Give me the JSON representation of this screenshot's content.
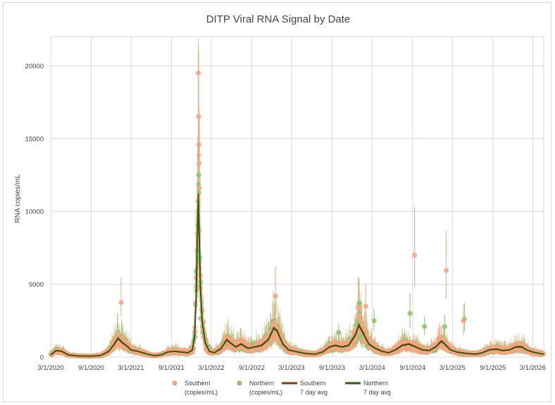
{
  "chart_data": {
    "type": "scatter",
    "title": "DITP Viral RNA Signal by Date",
    "xlabel": "",
    "ylabel": "RNA copies/mL",
    "ylim": [
      0,
      22000
    ],
    "xlim": [
      "2020-03-01",
      "2026-04-20"
    ],
    "grid": true,
    "legend_position": "bottom",
    "y_ticks": [
      0,
      5000,
      10000,
      15000,
      20000
    ],
    "y_tick_labels": [
      "0",
      "5000",
      "10000",
      "15000",
      "20000"
    ],
    "x_ticks": [
      "2020-03-01",
      "2020-09-01",
      "2021-03-01",
      "2021-09-01",
      "2022-03-01",
      "2022-09-01",
      "2023-03-01",
      "2023-09-01",
      "2024-03-01",
      "2024-09-01",
      "2025-03-01",
      "2025-09-01",
      "2026-03-01"
    ],
    "x_tick_labels": [
      "3/1/2020",
      "9/1/2020",
      "3/1/2021",
      "9/1/2021",
      "3/1/2022",
      "9/1/2022",
      "3/1/2023",
      "9/1/2023",
      "3/1/2024",
      "9/1/2024",
      "3/1/2025",
      "9/1/2025",
      "3/1/2026"
    ],
    "colors": {
      "southern_points": "#f4a582",
      "northern_points": "#8fc16d",
      "southern_avg": "#8b3a0e",
      "northern_avg": "#2e5a12",
      "grid": "#d9d9d9"
    },
    "legend": [
      {
        "line1": "Southern",
        "line2": "(copies/mL)",
        "marker": "circle",
        "color": "#f4a582"
      },
      {
        "line1": "Northern",
        "line2": "(copies/mL)",
        "marker": "circle",
        "color": "#8fc16d"
      },
      {
        "line1": "Southern",
        "line2": "7 day avg",
        "marker": "line",
        "color": "#8b3a0e"
      },
      {
        "line1": "Northern",
        "line2": "7 day avg",
        "marker": "line",
        "color": "#2e5a12"
      }
    ],
    "trend_points": [
      [
        "2020-03-01",
        150
      ],
      [
        "2020-03-25",
        450
      ],
      [
        "2020-04-20",
        400
      ],
      [
        "2020-05-20",
        150
      ],
      [
        "2020-07-01",
        80
      ],
      [
        "2020-09-01",
        60
      ],
      [
        "2020-10-15",
        120
      ],
      [
        "2020-11-20",
        400
      ],
      [
        "2020-12-15",
        900
      ],
      [
        "2021-01-01",
        1300
      ],
      [
        "2021-01-20",
        1000
      ],
      [
        "2021-02-15",
        700
      ],
      [
        "2021-03-01",
        500
      ],
      [
        "2021-04-01",
        400
      ],
      [
        "2021-05-15",
        200
      ],
      [
        "2021-06-15",
        100
      ],
      [
        "2021-07-15",
        150
      ],
      [
        "2021-08-15",
        350
      ],
      [
        "2021-09-15",
        400
      ],
      [
        "2021-10-15",
        350
      ],
      [
        "2021-11-15",
        300
      ],
      [
        "2021-12-05",
        500
      ],
      [
        "2021-12-15",
        1500
      ],
      [
        "2021-12-22",
        4000
      ],
      [
        "2021-12-27",
        8000
      ],
      [
        "2022-01-01",
        11000
      ],
      [
        "2022-01-05",
        8500
      ],
      [
        "2022-01-10",
        5000
      ],
      [
        "2022-01-18",
        2500
      ],
      [
        "2022-02-01",
        1000
      ],
      [
        "2022-02-20",
        400
      ],
      [
        "2022-03-15",
        300
      ],
      [
        "2022-04-15",
        600
      ],
      [
        "2022-05-10",
        1200
      ],
      [
        "2022-05-25",
        1000
      ],
      [
        "2022-06-20",
        700
      ],
      [
        "2022-07-15",
        900
      ],
      [
        "2022-08-15",
        600
      ],
      [
        "2022-09-15",
        700
      ],
      [
        "2022-10-15",
        800
      ],
      [
        "2022-11-15",
        1200
      ],
      [
        "2022-12-10",
        2000
      ],
      [
        "2022-12-25",
        1800
      ],
      [
        "2023-01-20",
        900
      ],
      [
        "2023-02-15",
        500
      ],
      [
        "2023-03-15",
        400
      ],
      [
        "2023-05-01",
        250
      ],
      [
        "2023-06-15",
        200
      ],
      [
        "2023-07-20",
        350
      ],
      [
        "2023-08-20",
        700
      ],
      [
        "2023-09-15",
        800
      ],
      [
        "2023-10-15",
        700
      ],
      [
        "2023-11-15",
        800
      ],
      [
        "2023-12-15",
        1500
      ],
      [
        "2024-01-01",
        2200
      ],
      [
        "2024-01-15",
        1800
      ],
      [
        "2024-02-15",
        900
      ],
      [
        "2024-03-15",
        600
      ],
      [
        "2024-04-15",
        400
      ],
      [
        "2024-05-15",
        300
      ],
      [
        "2024-06-15",
        500
      ],
      [
        "2024-07-15",
        800
      ],
      [
        "2024-08-15",
        900
      ],
      [
        "2024-09-15",
        700
      ],
      [
        "2024-10-15",
        500
      ],
      [
        "2024-11-15",
        450
      ],
      [
        "2024-12-15",
        700
      ],
      [
        "2025-01-10",
        1100
      ],
      [
        "2025-01-25",
        900
      ],
      [
        "2025-02-20",
        500
      ],
      [
        "2025-03-20",
        350
      ],
      [
        "2025-05-01",
        250
      ],
      [
        "2025-06-15",
        200
      ],
      [
        "2025-07-15",
        300
      ],
      [
        "2025-08-15",
        500
      ],
      [
        "2025-09-15",
        550
      ],
      [
        "2025-10-15",
        450
      ],
      [
        "2025-11-15",
        500
      ],
      [
        "2025-12-15",
        700
      ],
      [
        "2026-01-10",
        700
      ],
      [
        "2026-02-01",
        500
      ],
      [
        "2026-03-01",
        350
      ],
      [
        "2026-04-01",
        250
      ],
      [
        "2026-04-20",
        200
      ]
    ],
    "southern_outliers": [
      {
        "date": "2021-01-15",
        "value": 3750,
        "low": 2800,
        "high": 5500
      },
      {
        "date": "2022-12-18",
        "value": 4200,
        "low": 3000,
        "high": 6200
      },
      {
        "date": "2023-12-28",
        "value": 3400,
        "low": 2500,
        "high": 5500
      },
      {
        "date": "2024-02-01",
        "value": 3500,
        "low": 1800,
        "high": 5000
      },
      {
        "date": "2024-09-10",
        "value": 7000,
        "low": 4800,
        "high": 10300
      },
      {
        "date": "2025-02-01",
        "value": 5950,
        "low": 4000,
        "high": 8700
      },
      {
        "date": "2025-04-20",
        "value": 2500,
        "low": 1500,
        "high": 3600
      },
      {
        "date": "2022-01-01",
        "value": 19500,
        "low": 11000,
        "high": 21400
      },
      {
        "date": "2022-01-02",
        "value": 16500,
        "low": 12000,
        "high": 18500
      },
      {
        "date": "2022-01-03",
        "value": 14600,
        "low": 11500,
        "high": 16000
      },
      {
        "date": "2022-01-04",
        "value": 13300,
        "low": 11000,
        "high": 15000
      }
    ],
    "northern_outliers": [
      {
        "date": "2024-01-02",
        "value": 3700,
        "low": 3000,
        "high": 5400
      },
      {
        "date": "2024-03-10",
        "value": 2500,
        "low": 1800,
        "high": 3300
      },
      {
        "date": "2024-08-20",
        "value": 3000,
        "low": 2000,
        "high": 4400
      },
      {
        "date": "2024-10-25",
        "value": 2100,
        "low": 1500,
        "high": 2800
      },
      {
        "date": "2025-01-25",
        "value": 2100,
        "low": 1400,
        "high": 2900
      },
      {
        "date": "2025-04-25",
        "value": 2600,
        "low": 1800,
        "high": 3700
      },
      {
        "date": "2023-10-01",
        "value": 1700,
        "low": 1200,
        "high": 2300
      },
      {
        "date": "2022-01-02",
        "value": 12500,
        "low": 10000,
        "high": 14500
      }
    ]
  }
}
